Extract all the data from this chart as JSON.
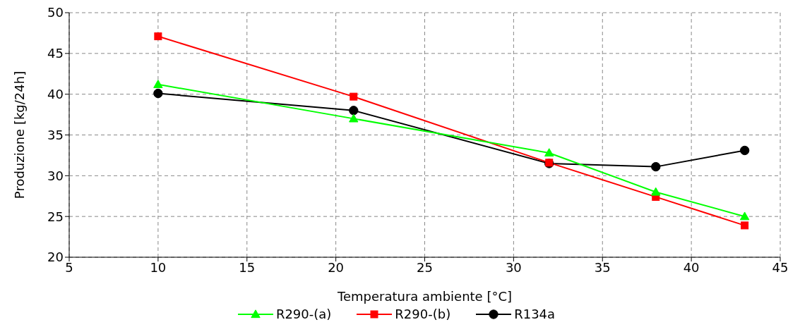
{
  "chart_data": {
    "type": "line",
    "xlabel": "Temperatura ambiente [°C]",
    "ylabel": "Produzione [kg/24h]",
    "x": [
      10,
      21,
      32,
      38,
      43
    ],
    "series": [
      {
        "name": "R290-(a)",
        "color": "#00ff00",
        "marker": "triangle",
        "values": [
          41.2,
          37.0,
          32.8,
          28.0,
          25.0
        ]
      },
      {
        "name": "R290-(b)",
        "color": "#ff0000",
        "marker": "square",
        "values": [
          47.1,
          39.7,
          31.6,
          27.4,
          23.9
        ]
      },
      {
        "name": "R134a",
        "color": "#000000",
        "marker": "circle",
        "values": [
          40.1,
          38.0,
          31.5,
          31.1,
          33.1
        ]
      }
    ],
    "xlim": [
      5,
      45
    ],
    "xticks": [
      5,
      10,
      15,
      20,
      25,
      30,
      35,
      40,
      45
    ],
    "ylim": [
      20,
      50
    ],
    "yticks": [
      20,
      25,
      30,
      35,
      40,
      45,
      50
    ],
    "grid": true,
    "legend": "bottom",
    "line_style": "solid"
  }
}
